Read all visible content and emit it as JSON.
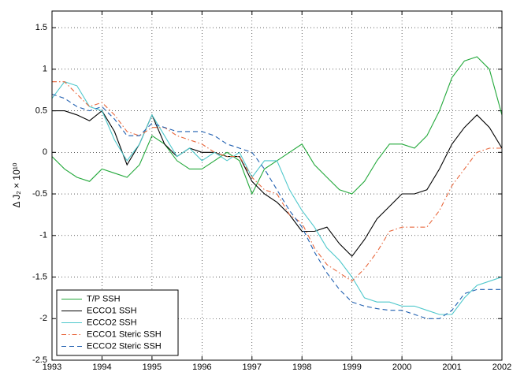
{
  "chart_data": {
    "type": "line",
    "ylabel": "Δ J₂ × 10¹⁰",
    "x": [
      1993,
      1993.25,
      1993.5,
      1993.75,
      1994,
      1994.25,
      1994.5,
      1994.75,
      1995,
      1995.25,
      1995.5,
      1995.75,
      1996,
      1996.25,
      1996.5,
      1996.75,
      1997,
      1997.25,
      1997.5,
      1997.75,
      1998,
      1998.25,
      1998.5,
      1998.75,
      1999,
      1999.25,
      1999.5,
      1999.75,
      2000,
      2000.25,
      2000.5,
      2000.75,
      2001,
      2001.25,
      2001.5,
      2001.75,
      2002
    ],
    "series": [
      {
        "name": "T/P SSH",
        "color": "#22a83a",
        "linestyle": "solid",
        "values": [
          -0.05,
          -0.2,
          -0.3,
          -0.35,
          -0.2,
          -0.25,
          -0.3,
          -0.15,
          0.2,
          0.1,
          -0.1,
          -0.2,
          -0.2,
          -0.1,
          0,
          -0.1,
          -0.5,
          -0.2,
          -0.1,
          0,
          0.1,
          -0.15,
          -0.3,
          -0.45,
          -0.5,
          -0.35,
          -0.1,
          0.1,
          0.1,
          0.05,
          0.2,
          0.5,
          0.9,
          1.1,
          1.15,
          1.0,
          0.45
        ]
      },
      {
        "name": "ECCO1 SSH",
        "color": "#000000",
        "linestyle": "solid",
        "values": [
          0.5,
          0.5,
          0.45,
          0.38,
          0.5,
          0.25,
          -0.15,
          0.1,
          0.45,
          0.1,
          -0.05,
          0.05,
          0,
          0,
          -0.05,
          -0.05,
          -0.35,
          -0.5,
          -0.6,
          -0.75,
          -0.95,
          -0.95,
          -0.9,
          -1.1,
          -1.25,
          -1.05,
          -0.8,
          -0.65,
          -0.5,
          -0.5,
          -0.45,
          -0.2,
          0.1,
          0.3,
          0.45,
          0.3,
          0.05
        ]
      },
      {
        "name": "ECCO2 SSH",
        "color": "#4fc8cc",
        "linestyle": "solid",
        "values": [
          0.65,
          0.85,
          0.8,
          0.55,
          0.5,
          0.15,
          -0.1,
          0.1,
          0.45,
          0.2,
          -0.05,
          0.05,
          -0.1,
          0,
          -0.1,
          0,
          -0.3,
          -0.1,
          -0.1,
          -0.45,
          -0.7,
          -0.9,
          -1.15,
          -1.3,
          -1.5,
          -1.75,
          -1.8,
          -1.8,
          -1.85,
          -1.85,
          -1.9,
          -1.95,
          -1.95,
          -1.75,
          -1.6,
          -1.55,
          -1.5
        ]
      },
      {
        "name": "ECCO1 Steric SSH",
        "color": "#e8673c",
        "linestyle": "dashdot",
        "values": [
          0.85,
          0.85,
          0.7,
          0.55,
          0.6,
          0.45,
          0.25,
          0.2,
          0.3,
          0.3,
          0.2,
          0.15,
          0.1,
          0,
          -0.05,
          -0.05,
          -0.3,
          -0.45,
          -0.5,
          -0.75,
          -0.85,
          -1.15,
          -1.35,
          -1.45,
          -1.55,
          -1.4,
          -1.2,
          -0.95,
          -0.9,
          -0.9,
          -0.9,
          -0.7,
          -0.4,
          -0.2,
          0,
          0.05,
          0.05
        ]
      },
      {
        "name": "ECCO2 Steric SSH",
        "color": "#1f5fb0",
        "linestyle": "dashed",
        "values": [
          0.7,
          0.65,
          0.55,
          0.5,
          0.55,
          0.4,
          0.2,
          0.2,
          0.35,
          0.3,
          0.25,
          0.25,
          0.25,
          0.2,
          0.1,
          0.05,
          0,
          -0.2,
          -0.45,
          -0.7,
          -0.9,
          -1.2,
          -1.45,
          -1.65,
          -1.8,
          -1.85,
          -1.88,
          -1.9,
          -1.9,
          -1.95,
          -2,
          -2,
          -1.9,
          -1.7,
          -1.65,
          -1.65,
          -1.65
        ]
      }
    ],
    "xlim": [
      1993,
      2002
    ],
    "xticks": [
      1993,
      1994,
      1995,
      1996,
      1997,
      1998,
      1999,
      2000,
      2001,
      2002
    ],
    "ylim": [
      -2.5,
      1.7
    ],
    "yticks": [
      -2.5,
      -2,
      -1.5,
      -1,
      -0.5,
      0,
      0.5,
      1,
      1.5
    ],
    "grid": true,
    "legend": "lower left"
  }
}
